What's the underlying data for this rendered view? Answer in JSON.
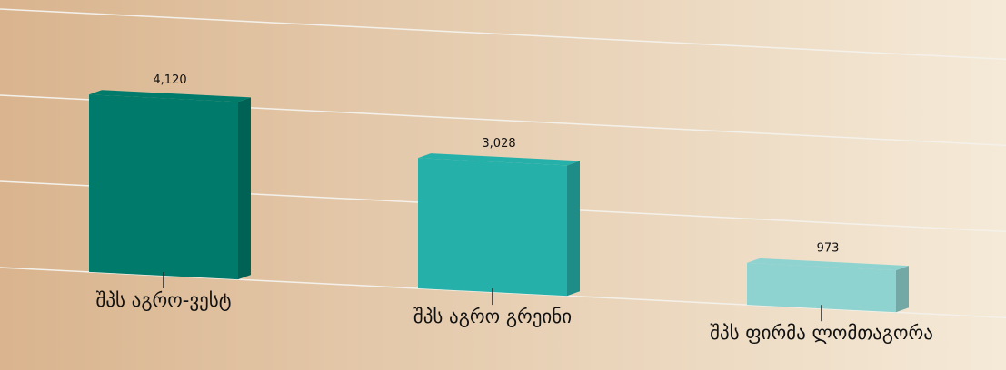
{
  "chart_data": {
    "type": "bar3d",
    "categories": [
      "შპს აგრო-ვესტ",
      "შპს აგრო გრეინი",
      "შპს ფირმა ლომთაგორა"
    ],
    "values": [
      4120,
      3028,
      973
    ],
    "value_labels": [
      "4,120",
      "3,028",
      "973"
    ],
    "colors": [
      "#007a6a",
      "#26b0aa",
      "#8fd3d0"
    ],
    "ylim": [
      0,
      6000
    ],
    "yticks": [
      0,
      2000,
      4000,
      6000
    ],
    "grid": true
  }
}
